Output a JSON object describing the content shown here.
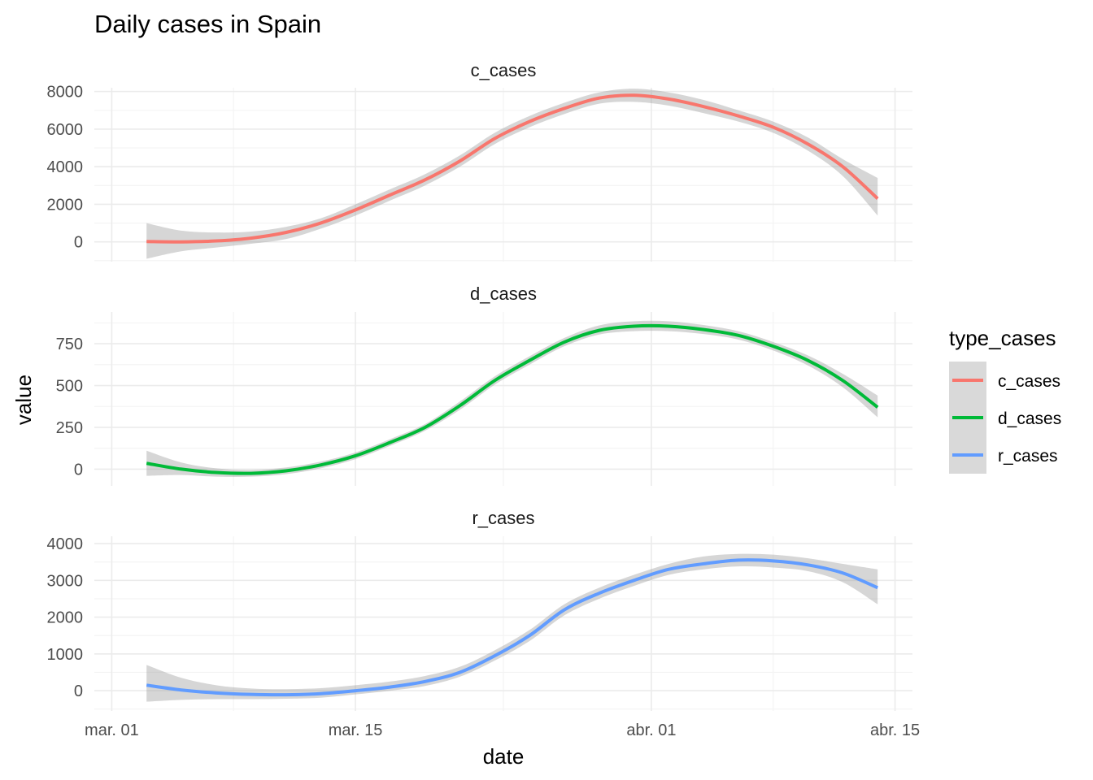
{
  "chart_data": {
    "type": "line",
    "title": "Daily cases in Spain",
    "xlabel": "date",
    "ylabel": "value",
    "x_ticks": [
      {
        "date": "2020-03-01",
        "label": "mar. 01"
      },
      {
        "date": "2020-03-15",
        "label": "mar. 15"
      },
      {
        "date": "2020-04-01",
        "label": "abr. 01"
      },
      {
        "date": "2020-04-15",
        "label": "abr. 15"
      }
    ],
    "xlim": [
      "2020-02-29",
      "2020-04-16"
    ],
    "grid": true,
    "legend": {
      "title": "type_cases",
      "placement": "right",
      "entries": [
        {
          "label": "c_cases",
          "color": "#f8766d"
        },
        {
          "label": "d_cases",
          "color": "#00ba38"
        },
        {
          "label": "r_cases",
          "color": "#619cff"
        }
      ]
    },
    "panels": [
      {
        "strip": "c_cases",
        "color": "#f8766d",
        "ylim": [
          -1050,
          8200
        ],
        "y_ticks": [
          0,
          2000,
          4000,
          6000,
          8000
        ],
        "y_minor": [
          -1000,
          1000,
          3000,
          5000,
          7000
        ],
        "points": [
          {
            "date": "2020-03-03",
            "value": 20,
            "lo": -900,
            "hi": 1000
          },
          {
            "date": "2020-03-05",
            "value": 0,
            "lo": -500,
            "hi": 600
          },
          {
            "date": "2020-03-07",
            "value": 50,
            "lo": -300,
            "hi": 500
          },
          {
            "date": "2020-03-09",
            "value": 200,
            "lo": -100,
            "hi": 550
          },
          {
            "date": "2020-03-11",
            "value": 500,
            "lo": 150,
            "hi": 800
          },
          {
            "date": "2020-03-13",
            "value": 1000,
            "lo": 700,
            "hi": 1250
          },
          {
            "date": "2020-03-15",
            "value": 1700,
            "lo": 1400,
            "hi": 2000
          },
          {
            "date": "2020-03-17",
            "value": 2500,
            "lo": 2200,
            "hi": 2800
          },
          {
            "date": "2020-03-19",
            "value": 3300,
            "lo": 3000,
            "hi": 3600
          },
          {
            "date": "2020-03-21",
            "value": 4300,
            "lo": 4000,
            "hi": 4600
          },
          {
            "date": "2020-03-23",
            "value": 5500,
            "lo": 5200,
            "hi": 5800
          },
          {
            "date": "2020-03-25",
            "value": 6400,
            "lo": 6100,
            "hi": 6700
          },
          {
            "date": "2020-03-27",
            "value": 7100,
            "lo": 6800,
            "hi": 7400
          },
          {
            "date": "2020-03-29",
            "value": 7650,
            "lo": 7350,
            "hi": 7950
          },
          {
            "date": "2020-03-31",
            "value": 7800,
            "lo": 7450,
            "hi": 8150
          },
          {
            "date": "2020-04-02",
            "value": 7600,
            "lo": 7250,
            "hi": 7950
          },
          {
            "date": "2020-04-04",
            "value": 7200,
            "lo": 6850,
            "hi": 7550
          },
          {
            "date": "2020-04-06",
            "value": 6700,
            "lo": 6400,
            "hi": 7000
          },
          {
            "date": "2020-04-08",
            "value": 6100,
            "lo": 5800,
            "hi": 6400
          },
          {
            "date": "2020-04-10",
            "value": 5200,
            "lo": 4850,
            "hi": 5550
          },
          {
            "date": "2020-04-12",
            "value": 4000,
            "lo": 3500,
            "hi": 4400
          },
          {
            "date": "2020-04-14",
            "value": 2300,
            "lo": 1400,
            "hi": 3400
          }
        ]
      },
      {
        "strip": "d_cases",
        "color": "#00ba38",
        "ylim": [
          -100,
          940
        ],
        "y_ticks": [
          0,
          250,
          500,
          750
        ],
        "y_minor": [
          125,
          375,
          625,
          875
        ],
        "points": [
          {
            "date": "2020-03-03",
            "value": 35,
            "lo": -40,
            "hi": 110
          },
          {
            "date": "2020-03-05",
            "value": 0,
            "lo": -35,
            "hi": 40
          },
          {
            "date": "2020-03-07",
            "value": -20,
            "lo": -45,
            "hi": 5
          },
          {
            "date": "2020-03-09",
            "value": -25,
            "lo": -45,
            "hi": -5
          },
          {
            "date": "2020-03-11",
            "value": -10,
            "lo": -30,
            "hi": 10
          },
          {
            "date": "2020-03-13",
            "value": 25,
            "lo": 5,
            "hi": 45
          },
          {
            "date": "2020-03-15",
            "value": 80,
            "lo": 60,
            "hi": 100
          },
          {
            "date": "2020-03-17",
            "value": 160,
            "lo": 140,
            "hi": 180
          },
          {
            "date": "2020-03-19",
            "value": 250,
            "lo": 230,
            "hi": 270
          },
          {
            "date": "2020-03-21",
            "value": 380,
            "lo": 355,
            "hi": 405
          },
          {
            "date": "2020-03-23",
            "value": 530,
            "lo": 505,
            "hi": 555
          },
          {
            "date": "2020-03-25",
            "value": 650,
            "lo": 625,
            "hi": 675
          },
          {
            "date": "2020-03-27",
            "value": 760,
            "lo": 735,
            "hi": 785
          },
          {
            "date": "2020-03-29",
            "value": 830,
            "lo": 805,
            "hi": 860
          },
          {
            "date": "2020-03-31",
            "value": 855,
            "lo": 825,
            "hi": 885
          },
          {
            "date": "2020-04-02",
            "value": 855,
            "lo": 825,
            "hi": 885
          },
          {
            "date": "2020-04-04",
            "value": 835,
            "lo": 808,
            "hi": 862
          },
          {
            "date": "2020-04-06",
            "value": 800,
            "lo": 775,
            "hi": 825
          },
          {
            "date": "2020-04-08",
            "value": 735,
            "lo": 710,
            "hi": 760
          },
          {
            "date": "2020-04-10",
            "value": 650,
            "lo": 620,
            "hi": 680
          },
          {
            "date": "2020-04-12",
            "value": 530,
            "lo": 490,
            "hi": 570
          },
          {
            "date": "2020-04-14",
            "value": 370,
            "lo": 310,
            "hi": 440
          }
        ]
      },
      {
        "strip": "r_cases",
        "color": "#619cff",
        "ylim": [
          -550,
          4200
        ],
        "y_ticks": [
          0,
          1000,
          2000,
          3000,
          4000
        ],
        "y_minor": [
          -500,
          500,
          1500,
          2500,
          3500
        ],
        "points": [
          {
            "date": "2020-03-03",
            "value": 150,
            "lo": -300,
            "hi": 700
          },
          {
            "date": "2020-03-05",
            "value": 20,
            "lo": -250,
            "hi": 350
          },
          {
            "date": "2020-03-07",
            "value": -60,
            "lo": -230,
            "hi": 150
          },
          {
            "date": "2020-03-09",
            "value": -100,
            "lo": -230,
            "hi": 60
          },
          {
            "date": "2020-03-11",
            "value": -110,
            "lo": -220,
            "hi": 40
          },
          {
            "date": "2020-03-13",
            "value": -80,
            "lo": -190,
            "hi": 70
          },
          {
            "date": "2020-03-15",
            "value": 0,
            "lo": -100,
            "hi": 150
          },
          {
            "date": "2020-03-17",
            "value": 100,
            "lo": 0,
            "hi": 250
          },
          {
            "date": "2020-03-19",
            "value": 250,
            "lo": 130,
            "hi": 400
          },
          {
            "date": "2020-03-21",
            "value": 500,
            "lo": 380,
            "hi": 650
          },
          {
            "date": "2020-03-23",
            "value": 950,
            "lo": 820,
            "hi": 1100
          },
          {
            "date": "2020-03-25",
            "value": 1500,
            "lo": 1350,
            "hi": 1650
          },
          {
            "date": "2020-03-27",
            "value": 2200,
            "lo": 2050,
            "hi": 2350
          },
          {
            "date": "2020-03-29",
            "value": 2650,
            "lo": 2500,
            "hi": 2800
          },
          {
            "date": "2020-03-31",
            "value": 3000,
            "lo": 2850,
            "hi": 3150
          },
          {
            "date": "2020-04-02",
            "value": 3300,
            "lo": 3150,
            "hi": 3450
          },
          {
            "date": "2020-04-04",
            "value": 3450,
            "lo": 3300,
            "hi": 3650
          },
          {
            "date": "2020-04-06",
            "value": 3550,
            "lo": 3380,
            "hi": 3720
          },
          {
            "date": "2020-04-08",
            "value": 3530,
            "lo": 3350,
            "hi": 3700
          },
          {
            "date": "2020-04-10",
            "value": 3420,
            "lo": 3250,
            "hi": 3600
          },
          {
            "date": "2020-04-12",
            "value": 3200,
            "lo": 2950,
            "hi": 3450
          },
          {
            "date": "2020-04-14",
            "value": 2800,
            "lo": 2350,
            "hi": 3300
          }
        ]
      }
    ]
  }
}
